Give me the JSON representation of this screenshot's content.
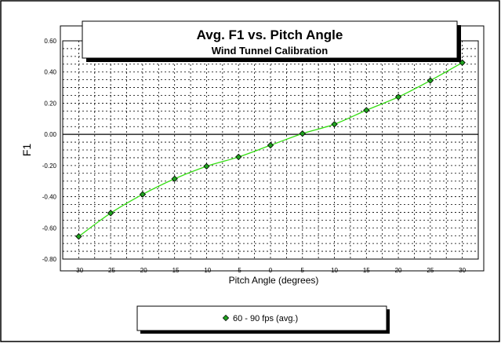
{
  "chart_data": {
    "type": "line",
    "title": "Avg. F1 vs. Pitch Angle",
    "subtitle": "Wind Tunnel Calibration",
    "xlabel": "Pitch Angle (degrees)",
    "ylabel": "F1",
    "xlim": [
      -32.5,
      32.5
    ],
    "ylim": [
      -0.8,
      0.6
    ],
    "x_ticks": [
      -30,
      -25,
      -20,
      -15,
      -10,
      -5,
      0,
      5,
      10,
      15,
      20,
      25,
      30
    ],
    "x_tick_labels": [
      "-30",
      "-25",
      "-20",
      "-15",
      "-10",
      "-5",
      "0",
      "5",
      "10",
      "15",
      "20",
      "25",
      "30"
    ],
    "y_ticks": [
      -0.8,
      -0.6,
      -0.4,
      -0.2,
      0.0,
      0.2,
      0.4,
      0.6
    ],
    "y_tick_labels": [
      "-0.80",
      "-0.60",
      "-0.40",
      "-0.20",
      "0.00",
      "0.20",
      "0.40",
      "0.60"
    ],
    "grid": true,
    "legend_position": "bottom",
    "series": [
      {
        "name": "60 - 90 fps (avg.)",
        "color": "#33dd11",
        "marker": "diamond",
        "marker_color": "#1fa31f",
        "x": [
          -30,
          -25,
          -20,
          -15,
          -10,
          -5,
          0,
          5,
          10,
          15,
          20,
          25,
          30
        ],
        "y": [
          -0.655,
          -0.505,
          -0.385,
          -0.285,
          -0.205,
          -0.145,
          -0.07,
          0.005,
          0.065,
          0.155,
          0.24,
          0.345,
          0.46
        ]
      }
    ]
  }
}
